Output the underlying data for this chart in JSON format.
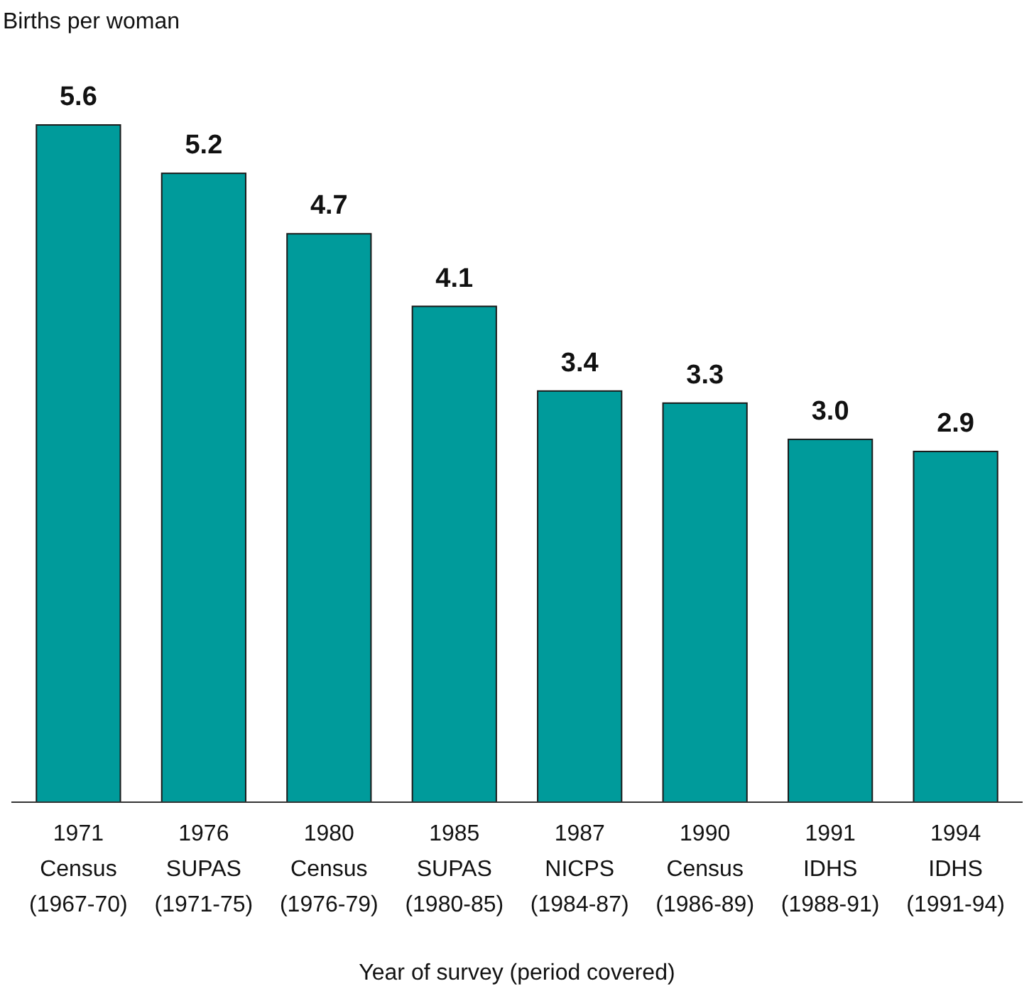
{
  "chart_data": {
    "type": "bar",
    "ylabel": "Births per woman",
    "xlabel": "Year of survey (period covered)",
    "categories": [
      "1971\nCensus\n(1967-70)",
      "1976\nSUPAS\n(1971-75)",
      "1980\nCensus\n(1976-79)",
      "1985\nSUPAS\n(1980-85)",
      "1987\nNICPS\n(1984-87)",
      "1990\nCensus\n(1986-89)",
      "1991\nIDHS\n(1988-91)",
      "1994\nIDHS\n(1991-94)"
    ],
    "values": [
      5.6,
      5.2,
      4.7,
      4.1,
      3.4,
      3.3,
      3.0,
      2.9
    ],
    "value_labels": [
      "5.6",
      "5.2",
      "4.7",
      "4.1",
      "3.4",
      "3.3",
      "3.0",
      "2.9"
    ],
    "color": "#009b9b"
  }
}
